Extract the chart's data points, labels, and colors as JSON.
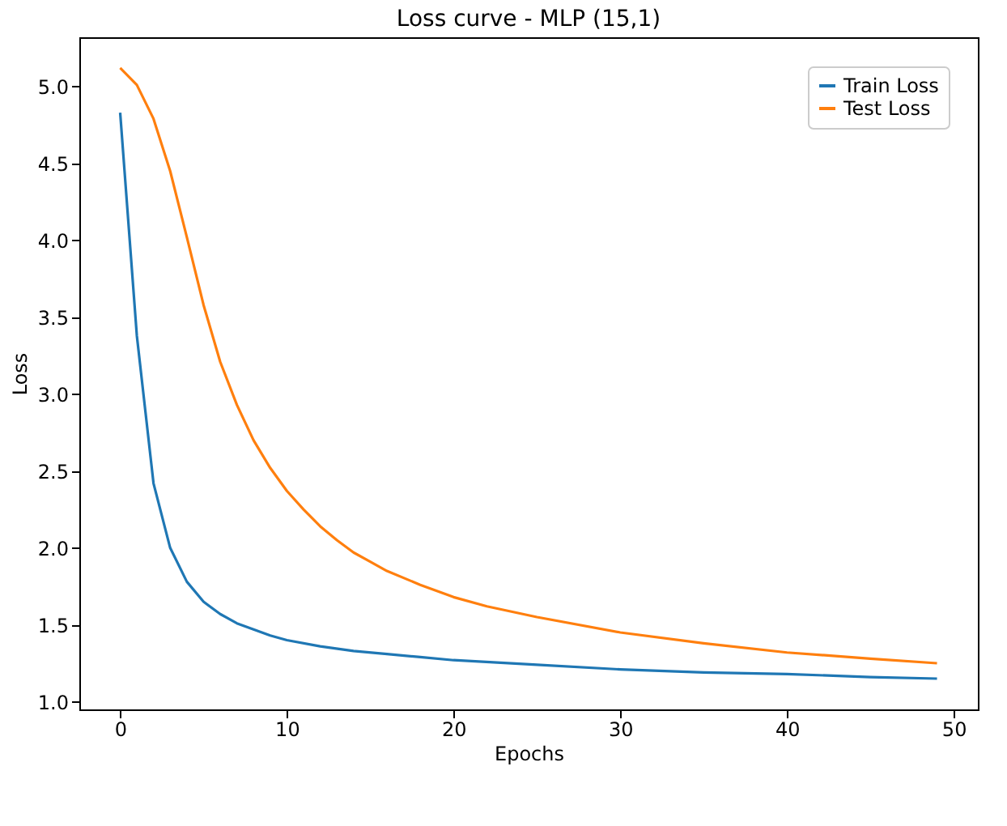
{
  "chart_data": {
    "type": "line",
    "title": "Loss curve - MLP (15,1)",
    "xlabel": "Epochs",
    "ylabel": "Loss",
    "xlim": [
      -2.45,
      51.45
    ],
    "xticks": [
      0,
      10,
      20,
      30,
      40,
      50
    ],
    "ylim": [
      0.95,
      5.32
    ],
    "yticks": [
      {
        "value": 1,
        "label": "1.0"
      },
      1.5,
      {
        "value": 2,
        "label": "2.0"
      },
      2.5,
      {
        "value": 3,
        "label": "3.0"
      },
      3.5,
      {
        "value": 4,
        "label": "4.0"
      },
      4.5,
      {
        "value": 5,
        "label": "5.0"
      }
    ],
    "grid": false,
    "legend": "top right",
    "series": [
      {
        "name": "Train Loss",
        "color": "#1f77b4",
        "x": [
          0,
          1,
          2,
          3,
          4,
          5,
          6,
          7,
          8,
          9,
          10,
          12,
          14,
          16,
          18,
          20,
          25,
          30,
          35,
          40,
          45,
          49
        ],
        "values": [
          4.83,
          3.38,
          2.42,
          2.0,
          1.78,
          1.65,
          1.57,
          1.51,
          1.47,
          1.43,
          1.4,
          1.36,
          1.33,
          1.31,
          1.29,
          1.27,
          1.24,
          1.21,
          1.19,
          1.18,
          1.16,
          1.15
        ]
      },
      {
        "name": "Test Loss",
        "color": "#ff7f0e",
        "x": [
          0,
          1,
          2,
          3,
          4,
          5,
          6,
          7,
          8,
          9,
          10,
          11,
          12,
          13,
          14,
          15,
          16,
          18,
          20,
          22,
          25,
          30,
          35,
          40,
          45,
          49
        ],
        "values": [
          5.12,
          5.01,
          4.79,
          4.45,
          4.02,
          3.58,
          3.21,
          2.93,
          2.7,
          2.52,
          2.37,
          2.25,
          2.14,
          2.05,
          1.97,
          1.91,
          1.85,
          1.76,
          1.68,
          1.62,
          1.55,
          1.45,
          1.38,
          1.32,
          1.28,
          1.25
        ]
      }
    ]
  }
}
